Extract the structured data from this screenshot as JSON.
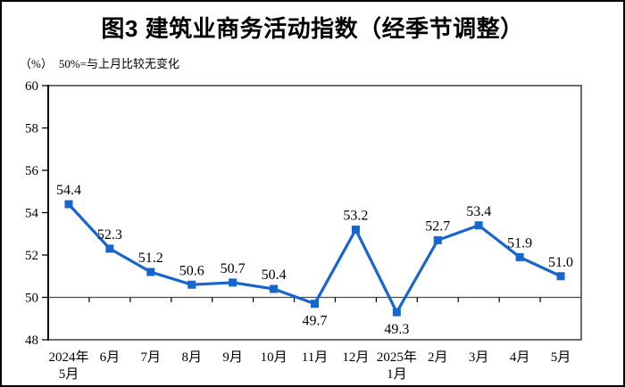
{
  "title": "图3 建筑业商务活动指数（经季节调整）",
  "subtitle": {
    "unit": "（%）",
    "note": "50%=与上月比较无变化"
  },
  "chart_data": {
    "type": "line",
    "title": "图3 建筑业商务活动指数（经季节调整）",
    "subtitle": "（%）50%=与上月比较无变化",
    "categories": [
      "2024年|5月",
      "6月",
      "7月",
      "8月",
      "9月",
      "10月",
      "11月",
      "12月",
      "2025年|1月",
      "2月",
      "3月",
      "4月",
      "5月"
    ],
    "values": [
      54.4,
      52.3,
      51.2,
      50.6,
      50.7,
      50.4,
      49.7,
      53.2,
      49.3,
      52.7,
      53.4,
      51.9,
      51.0
    ],
    "ylim": [
      48,
      60
    ],
    "y_ticks": [
      48,
      50,
      52,
      54,
      56,
      58,
      60
    ],
    "reference_line": 50,
    "labels_below_indices": [
      6,
      8
    ],
    "series_color": "#1666CE",
    "axis_color": "#4a4a4a",
    "tick_color": "#000000",
    "text_color": "#000000",
    "grid": "off",
    "legend": "none",
    "marker": "square"
  }
}
